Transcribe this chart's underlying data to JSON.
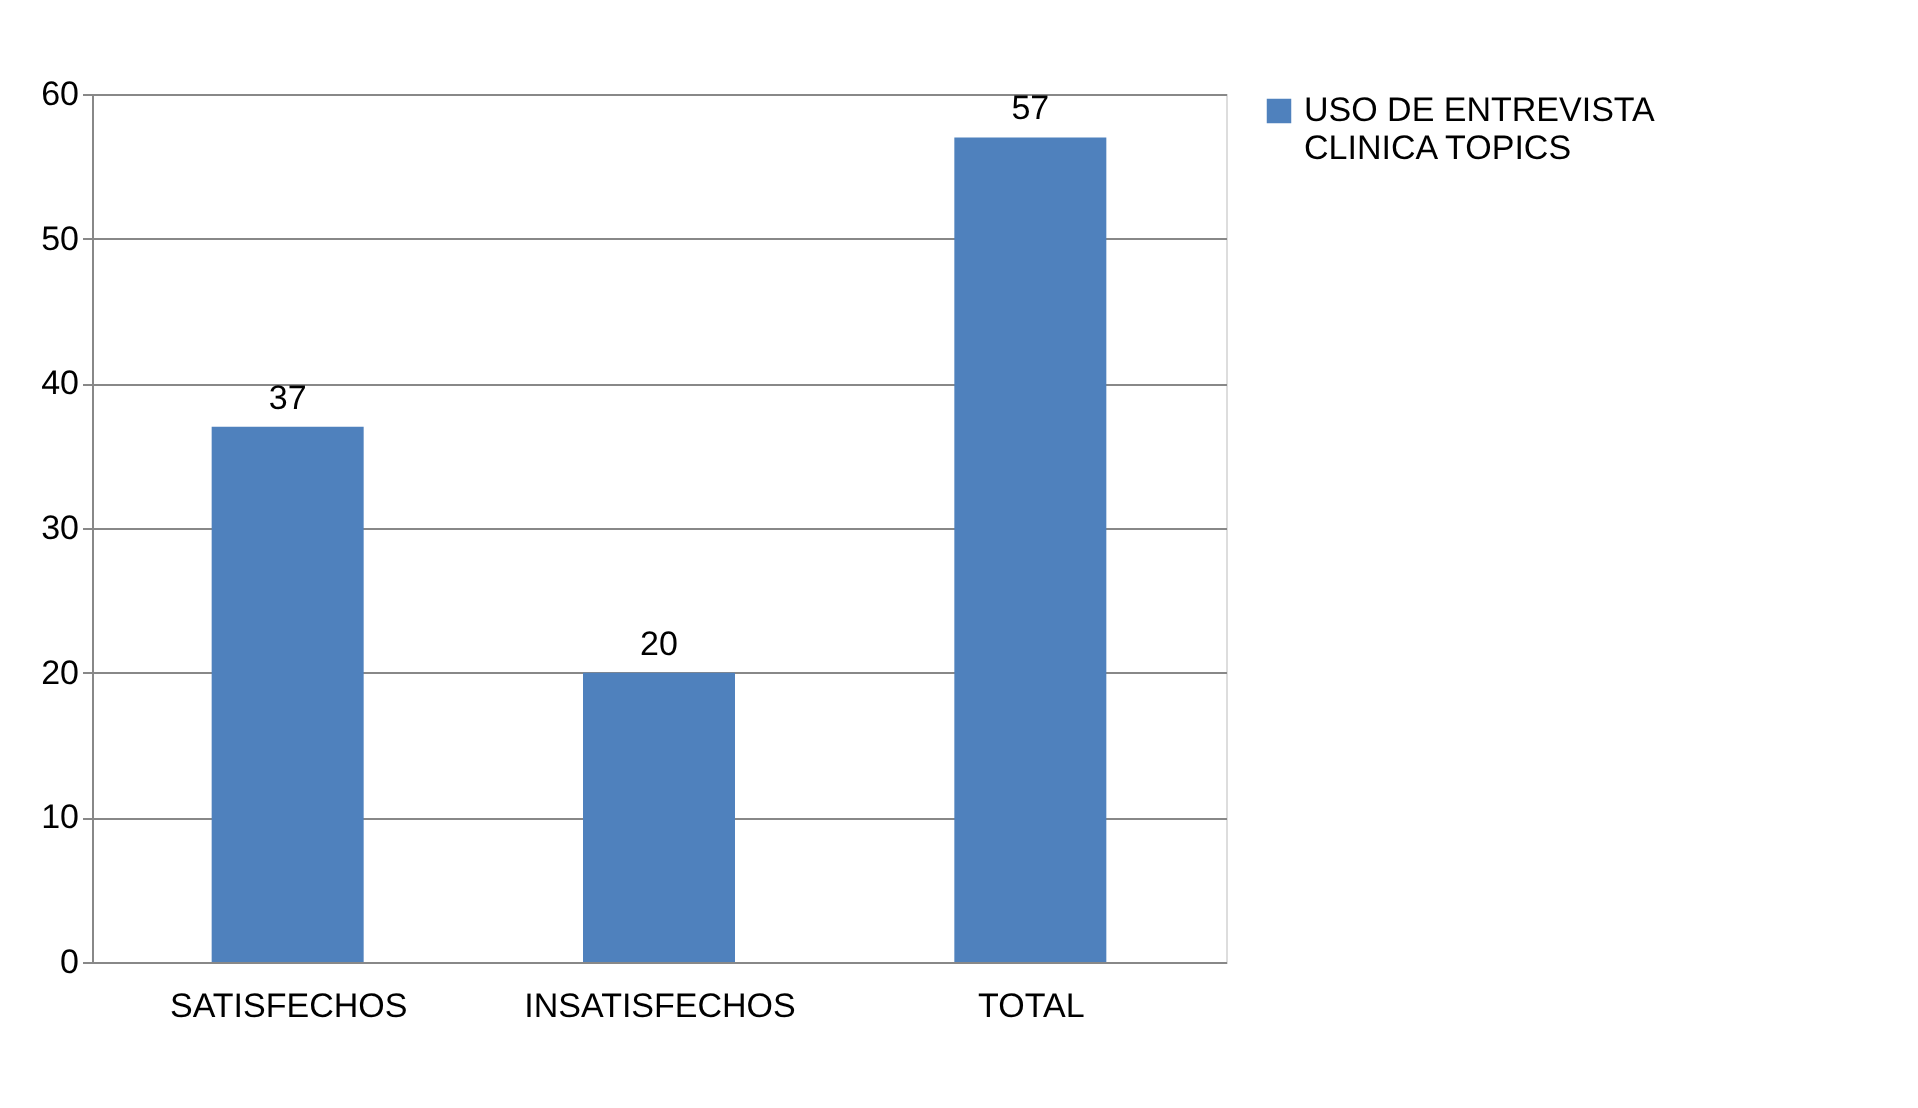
{
  "chart_data": {
    "type": "bar",
    "categories": [
      "SATISFECHOS",
      "INSATISFECHOS",
      "TOTAL"
    ],
    "series": [
      {
        "name": "USO DE ENTREVISTA CLINICA TOPICS",
        "color": "#4f81bd",
        "values": [
          37,
          20,
          57
        ]
      }
    ],
    "ylim": [
      0,
      60
    ],
    "yticks": [
      0,
      10,
      20,
      30,
      40,
      50,
      60
    ],
    "grid": "y",
    "legend": "right",
    "data_labels": true
  }
}
